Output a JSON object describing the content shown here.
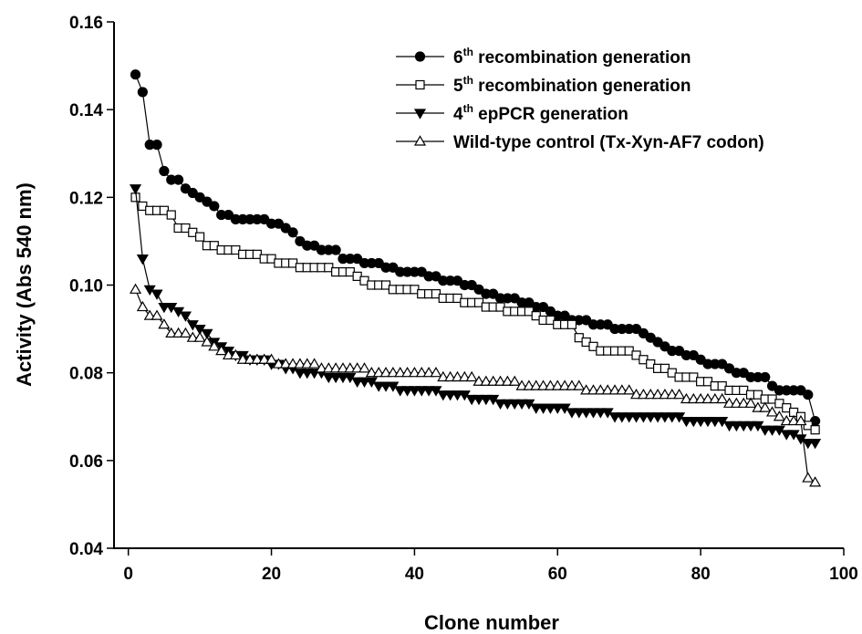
{
  "chart_data": {
    "type": "line",
    "xlabel": "Clone number",
    "ylabel": "Activity (Abs 540 nm)",
    "xlim": [
      -2,
      100
    ],
    "ylim": [
      0.04,
      0.16
    ],
    "xticks": [
      "0",
      "20",
      "40",
      "60",
      "80",
      "100"
    ],
    "yticks": [
      "0.04",
      "0.06",
      "0.08",
      "0.10",
      "0.12",
      "0.14",
      "0.16"
    ],
    "legend_position": "top-right",
    "grid": false,
    "series": [
      {
        "name": "6th recombination generation",
        "label_num": "6",
        "label_sup": "th",
        "label_rest": " recombination generation",
        "marker": "circle-filled",
        "x": [
          1,
          2,
          3,
          4,
          5,
          6,
          7,
          8,
          9,
          10,
          11,
          12,
          13,
          14,
          15,
          16,
          17,
          18,
          19,
          20,
          21,
          22,
          23,
          24,
          25,
          26,
          27,
          28,
          29,
          30,
          31,
          32,
          33,
          34,
          35,
          36,
          37,
          38,
          39,
          40,
          41,
          42,
          43,
          44,
          45,
          46,
          47,
          48,
          49,
          50,
          51,
          52,
          53,
          54,
          55,
          56,
          57,
          58,
          59,
          60,
          61,
          62,
          63,
          64,
          65,
          66,
          67,
          68,
          69,
          70,
          71,
          72,
          73,
          74,
          75,
          76,
          77,
          78,
          79,
          80,
          81,
          82,
          83,
          84,
          85,
          86,
          87,
          88,
          89,
          90,
          91,
          92,
          93,
          94,
          95,
          96
        ],
        "y": [
          0.148,
          0.144,
          0.132,
          0.132,
          0.126,
          0.124,
          0.124,
          0.122,
          0.121,
          0.12,
          0.119,
          0.118,
          0.116,
          0.116,
          0.115,
          0.115,
          0.115,
          0.115,
          0.115,
          0.114,
          0.114,
          0.113,
          0.112,
          0.11,
          0.109,
          0.109,
          0.108,
          0.108,
          0.108,
          0.106,
          0.106,
          0.106,
          0.105,
          0.105,
          0.105,
          0.104,
          0.104,
          0.103,
          0.103,
          0.103,
          0.103,
          0.102,
          0.102,
          0.101,
          0.101,
          0.101,
          0.1,
          0.1,
          0.099,
          0.098,
          0.098,
          0.097,
          0.097,
          0.097,
          0.096,
          0.096,
          0.095,
          0.095,
          0.094,
          0.093,
          0.093,
          0.092,
          0.092,
          0.092,
          0.091,
          0.091,
          0.091,
          0.09,
          0.09,
          0.09,
          0.09,
          0.089,
          0.088,
          0.087,
          0.086,
          0.085,
          0.085,
          0.084,
          0.084,
          0.083,
          0.082,
          0.082,
          0.082,
          0.081,
          0.08,
          0.08,
          0.079,
          0.079,
          0.079,
          0.077,
          0.076,
          0.076,
          0.076,
          0.076,
          0.075,
          0.069
        ]
      },
      {
        "name": "5th recombination generation",
        "label_num": "5",
        "label_sup": "th",
        "label_rest": " recombination generation",
        "marker": "square-open",
        "x": [
          1,
          2,
          3,
          4,
          5,
          6,
          7,
          8,
          9,
          10,
          11,
          12,
          13,
          14,
          15,
          16,
          17,
          18,
          19,
          20,
          21,
          22,
          23,
          24,
          25,
          26,
          27,
          28,
          29,
          30,
          31,
          32,
          33,
          34,
          35,
          36,
          37,
          38,
          39,
          40,
          41,
          42,
          43,
          44,
          45,
          46,
          47,
          48,
          49,
          50,
          51,
          52,
          53,
          54,
          55,
          56,
          57,
          58,
          59,
          60,
          61,
          62,
          63,
          64,
          65,
          66,
          67,
          68,
          69,
          70,
          71,
          72,
          73,
          74,
          75,
          76,
          77,
          78,
          79,
          80,
          81,
          82,
          83,
          84,
          85,
          86,
          87,
          88,
          89,
          90,
          91,
          92,
          93,
          94,
          95,
          96
        ],
        "y": [
          0.12,
          0.118,
          0.117,
          0.117,
          0.117,
          0.116,
          0.113,
          0.113,
          0.112,
          0.111,
          0.109,
          0.109,
          0.108,
          0.108,
          0.108,
          0.107,
          0.107,
          0.107,
          0.106,
          0.106,
          0.105,
          0.105,
          0.105,
          0.104,
          0.104,
          0.104,
          0.104,
          0.104,
          0.103,
          0.103,
          0.103,
          0.102,
          0.101,
          0.1,
          0.1,
          0.1,
          0.099,
          0.099,
          0.099,
          0.099,
          0.098,
          0.098,
          0.098,
          0.097,
          0.097,
          0.097,
          0.096,
          0.096,
          0.096,
          0.095,
          0.095,
          0.095,
          0.094,
          0.094,
          0.094,
          0.094,
          0.093,
          0.092,
          0.092,
          0.091,
          0.091,
          0.091,
          0.088,
          0.087,
          0.086,
          0.085,
          0.085,
          0.085,
          0.085,
          0.085,
          0.084,
          0.083,
          0.082,
          0.081,
          0.081,
          0.08,
          0.079,
          0.079,
          0.079,
          0.078,
          0.078,
          0.077,
          0.077,
          0.076,
          0.076,
          0.076,
          0.075,
          0.075,
          0.074,
          0.074,
          0.073,
          0.072,
          0.071,
          0.07,
          0.068,
          0.067
        ]
      },
      {
        "name": "4th epPCR generation",
        "label_num": "4",
        "label_sup": "th",
        "label_rest": " epPCR generation",
        "marker": "triangle-down-filled",
        "x": [
          1,
          2,
          3,
          4,
          5,
          6,
          7,
          8,
          9,
          10,
          11,
          12,
          13,
          14,
          15,
          16,
          17,
          18,
          19,
          20,
          21,
          22,
          23,
          24,
          25,
          26,
          27,
          28,
          29,
          30,
          31,
          32,
          33,
          34,
          35,
          36,
          37,
          38,
          39,
          40,
          41,
          42,
          43,
          44,
          45,
          46,
          47,
          48,
          49,
          50,
          51,
          52,
          53,
          54,
          55,
          56,
          57,
          58,
          59,
          60,
          61,
          62,
          63,
          64,
          65,
          66,
          67,
          68,
          69,
          70,
          71,
          72,
          73,
          74,
          75,
          76,
          77,
          78,
          79,
          80,
          81,
          82,
          83,
          84,
          85,
          86,
          87,
          88,
          89,
          90,
          91,
          92,
          93,
          94,
          95,
          96
        ],
        "y": [
          0.122,
          0.106,
          0.099,
          0.098,
          0.095,
          0.095,
          0.094,
          0.093,
          0.091,
          0.09,
          0.089,
          0.087,
          0.086,
          0.085,
          0.084,
          0.084,
          0.083,
          0.083,
          0.083,
          0.082,
          0.082,
          0.081,
          0.081,
          0.08,
          0.08,
          0.08,
          0.08,
          0.079,
          0.079,
          0.079,
          0.079,
          0.078,
          0.078,
          0.078,
          0.077,
          0.077,
          0.077,
          0.076,
          0.076,
          0.076,
          0.076,
          0.076,
          0.076,
          0.075,
          0.075,
          0.075,
          0.075,
          0.074,
          0.074,
          0.074,
          0.074,
          0.073,
          0.073,
          0.073,
          0.073,
          0.073,
          0.072,
          0.072,
          0.072,
          0.072,
          0.072,
          0.071,
          0.071,
          0.071,
          0.071,
          0.071,
          0.071,
          0.07,
          0.07,
          0.07,
          0.07,
          0.07,
          0.07,
          0.07,
          0.07,
          0.07,
          0.07,
          0.069,
          0.069,
          0.069,
          0.069,
          0.069,
          0.069,
          0.068,
          0.068,
          0.068,
          0.068,
          0.068,
          0.067,
          0.067,
          0.067,
          0.066,
          0.066,
          0.065,
          0.064,
          0.064
        ]
      },
      {
        "name": "Wild-type control (Tx-Xyn-AF7 codon)",
        "label_num": "Wild-type control (Tx-Xyn-AF7 codon)",
        "label_sup": "",
        "label_rest": "",
        "marker": "triangle-up-open",
        "x": [
          1,
          2,
          3,
          4,
          5,
          6,
          7,
          8,
          9,
          10,
          11,
          12,
          13,
          14,
          15,
          16,
          17,
          18,
          19,
          20,
          21,
          22,
          23,
          24,
          25,
          26,
          27,
          28,
          29,
          30,
          31,
          32,
          33,
          34,
          35,
          36,
          37,
          38,
          39,
          40,
          41,
          42,
          43,
          44,
          45,
          46,
          47,
          48,
          49,
          50,
          51,
          52,
          53,
          54,
          55,
          56,
          57,
          58,
          59,
          60,
          61,
          62,
          63,
          64,
          65,
          66,
          67,
          68,
          69,
          70,
          71,
          72,
          73,
          74,
          75,
          76,
          77,
          78,
          79,
          80,
          81,
          82,
          83,
          84,
          85,
          86,
          87,
          88,
          89,
          90,
          91,
          92,
          93,
          94,
          95,
          96
        ],
        "y": [
          0.099,
          0.095,
          0.093,
          0.093,
          0.091,
          0.089,
          0.089,
          0.089,
          0.088,
          0.088,
          0.087,
          0.086,
          0.085,
          0.084,
          0.084,
          0.083,
          0.083,
          0.083,
          0.083,
          0.083,
          0.082,
          0.082,
          0.082,
          0.082,
          0.082,
          0.082,
          0.081,
          0.081,
          0.081,
          0.081,
          0.081,
          0.081,
          0.081,
          0.08,
          0.08,
          0.08,
          0.08,
          0.08,
          0.08,
          0.08,
          0.08,
          0.08,
          0.08,
          0.079,
          0.079,
          0.079,
          0.079,
          0.079,
          0.078,
          0.078,
          0.078,
          0.078,
          0.078,
          0.078,
          0.077,
          0.077,
          0.077,
          0.077,
          0.077,
          0.077,
          0.077,
          0.077,
          0.077,
          0.076,
          0.076,
          0.076,
          0.076,
          0.076,
          0.076,
          0.076,
          0.075,
          0.075,
          0.075,
          0.075,
          0.075,
          0.075,
          0.075,
          0.074,
          0.074,
          0.074,
          0.074,
          0.074,
          0.074,
          0.073,
          0.073,
          0.073,
          0.073,
          0.072,
          0.072,
          0.071,
          0.07,
          0.069,
          0.069,
          0.069,
          0.056,
          0.055
        ]
      }
    ]
  }
}
